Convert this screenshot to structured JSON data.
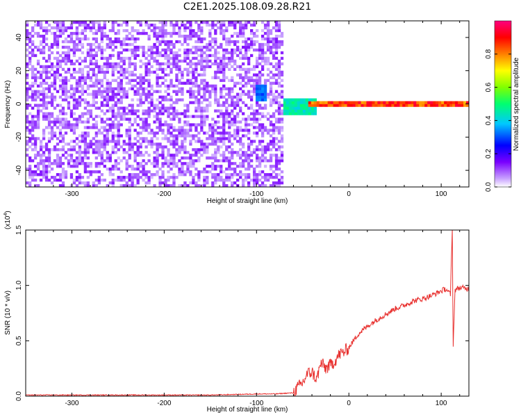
{
  "figure": {
    "title": "C2E1.2025.108.09.28.R21"
  },
  "chart_data": [
    {
      "type": "heatmap",
      "xlabel": "Height of straight line (km)",
      "ylabel": "Frequency (Hz)",
      "xlim": [
        -350,
        130
      ],
      "ylim": [
        -50,
        50
      ],
      "x_ticks": [
        -300,
        -200,
        -100,
        0,
        100
      ],
      "x_tick_labels": [
        "-300",
        "-200",
        "-100",
        "0",
        "100"
      ],
      "y_ticks": [
        -40,
        -20,
        0,
        20,
        40
      ],
      "y_tick_labels": [
        "-40",
        "-20",
        "0",
        "20",
        "40"
      ],
      "colorbar": {
        "label": "Normalized spectral amplitude",
        "range": [
          0,
          1
        ],
        "ticks": [
          0.0,
          0.2,
          0.4,
          0.6,
          0.8
        ],
        "tick_labels": [
          "0.0",
          "0.2",
          "0.4",
          "0.6",
          "0.8"
        ],
        "colors": [
          "#ffffff",
          "#c9a3ff",
          "#7a00ff",
          "#0000ff",
          "#00c8ff",
          "#00ff70",
          "#80ff00",
          "#ffff00",
          "#ff8000",
          "#ff0000",
          "#ff007f"
        ]
      },
      "features": [
        {
          "x_range": [
            -350,
            -70
          ],
          "y_range": [
            -50,
            50
          ],
          "amplitude": 0.12,
          "kind": "broadband noise"
        },
        {
          "x_range": [
            -100,
            -88
          ],
          "y_range": [
            2,
            12
          ],
          "amplitude": 0.35,
          "kind": "blob"
        },
        {
          "x_range": [
            -70,
            -35
          ],
          "y_range": [
            -6,
            3
          ],
          "amplitude": 0.5,
          "kind": "blob"
        },
        {
          "x_range": [
            -45,
            130
          ],
          "y_range": [
            -1,
            1
          ],
          "amplitude": 0.95,
          "kind": "narrowband line at 0 Hz"
        }
      ],
      "grid": false
    },
    {
      "type": "line",
      "xlabel": "Height of straight line (km)",
      "ylabel": "SNR (10 * v/v)",
      "y_multiplier_label": "(x10",
      "y_multiplier_exp": "4",
      "y_multiplier_close": ")",
      "xlim": [
        -350,
        130
      ],
      "ylim": [
        0,
        1.5
      ],
      "x_ticks": [
        -300,
        -200,
        -100,
        0,
        100
      ],
      "x_tick_labels": [
        "-300",
        "-200",
        "-100",
        "0",
        "100"
      ],
      "y_ticks": [
        0,
        0.5,
        1.0,
        1.5
      ],
      "y_tick_labels": [
        "0.0",
        "0.5",
        "1.0",
        "1.5"
      ],
      "color": "#e8312f",
      "grid": false,
      "series": [
        {
          "x": [
            -350,
            -300,
            -250,
            -200,
            -150,
            -100,
            -80,
            -60,
            -55,
            -50,
            -45,
            -40,
            -35,
            -30,
            -25,
            -20,
            -15,
            -10,
            -5,
            0,
            5,
            10,
            20,
            30,
            40,
            50,
            60,
            70,
            80,
            90,
            100,
            105,
            110,
            112,
            113,
            115,
            120,
            130
          ],
          "y": [
            0.01,
            0.01,
            0.01,
            0.01,
            0.01,
            0.02,
            0.02,
            0.03,
            0.08,
            0.12,
            0.2,
            0.22,
            0.15,
            0.3,
            0.25,
            0.28,
            0.32,
            0.38,
            0.4,
            0.44,
            0.5,
            0.56,
            0.63,
            0.69,
            0.74,
            0.79,
            0.82,
            0.86,
            0.88,
            0.91,
            0.95,
            0.97,
            0.92,
            1.5,
            0.47,
            0.96,
            0.98,
            0.97
          ]
        }
      ]
    }
  ]
}
